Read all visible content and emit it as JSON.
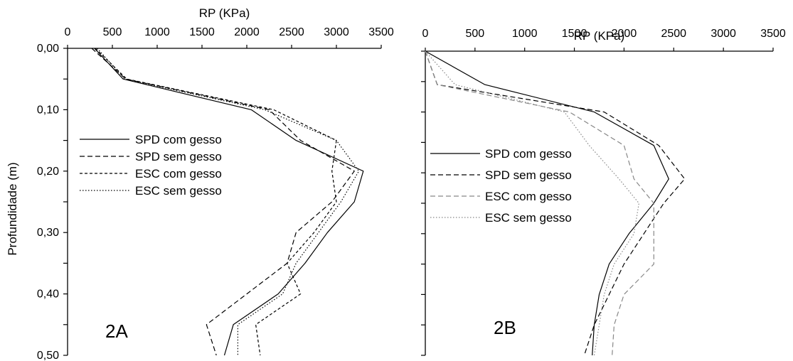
{
  "chart_data": [
    {
      "type": "line",
      "panel_label": "2A",
      "xlabel": "RP (KPa)",
      "ylabel": "Profundidade (m)",
      "xlim": [
        0,
        3500
      ],
      "ylim": [
        0,
        0.5
      ],
      "x_axis_position": "top",
      "y_axis_inverted": true,
      "x_ticks": [
        "0",
        "500",
        "1000",
        "1500",
        "2000",
        "2500",
        "3000",
        "3500"
      ],
      "y_ticks": [
        "0,00",
        "0,10",
        "0,20",
        "0,30",
        "0,40",
        "0,50"
      ],
      "grid": false,
      "legend_position": "center-left",
      "series": [
        {
          "name": "SPD com gesso",
          "style": "solid",
          "color": "#000000",
          "depth": [
            0,
            0.05,
            0.1,
            0.15,
            0.2,
            0.25,
            0.3,
            0.35,
            0.4,
            0.45,
            0.5
          ],
          "values": [
            300,
            620,
            2050,
            2550,
            3300,
            3200,
            2900,
            2650,
            2350,
            1850,
            1750
          ]
        },
        {
          "name": "SPD sem gesso",
          "style": "dashed",
          "color": "#000000",
          "depth": [
            0,
            0.05,
            0.1,
            0.15,
            0.2,
            0.25,
            0.3,
            0.35,
            0.4,
            0.45,
            0.5
          ],
          "values": [
            270,
            650,
            2250,
            2600,
            3200,
            2950,
            2550,
            2450,
            2000,
            1550,
            1660
          ]
        },
        {
          "name": "ESC com gesso",
          "style": "short-dashed",
          "color": "#000000",
          "depth": [
            0,
            0.05,
            0.1,
            0.15,
            0.2,
            0.25,
            0.3,
            0.35,
            0.4,
            0.45,
            0.5
          ],
          "values": [
            310,
            660,
            2300,
            3000,
            2950,
            3000,
            2750,
            2450,
            2600,
            2100,
            2150
          ]
        },
        {
          "name": "ESC sem gesso",
          "style": "dotted",
          "color": "#000000",
          "depth": [
            0,
            0.05,
            0.1,
            0.15,
            0.2,
            0.25,
            0.3,
            0.35,
            0.4,
            0.45,
            0.5
          ],
          "values": [
            330,
            640,
            2200,
            3000,
            3250,
            3050,
            2800,
            2550,
            2400,
            1900,
            1900
          ]
        }
      ]
    },
    {
      "type": "line",
      "panel_label": "2B",
      "xlabel": "RP (KPa)",
      "ylabel": "",
      "xlim": [
        0,
        3500
      ],
      "ylim": [
        0,
        0.5
      ],
      "x_axis_position": "top",
      "y_axis_inverted": true,
      "x_ticks": [
        "0",
        "500",
        "1000",
        "1500",
        "2000",
        "2500",
        "3000",
        "3500"
      ],
      "y_ticks": [],
      "grid": false,
      "legend_position": "center-left",
      "series": [
        {
          "name": "SPD com gesso",
          "style": "solid",
          "color": "#000000",
          "depth": [
            0,
            0.055,
            0.1,
            0.155,
            0.21,
            0.25,
            0.3,
            0.35,
            0.4,
            0.45,
            0.5
          ],
          "values": [
            0,
            600,
            1700,
            2300,
            2450,
            2300,
            2050,
            1850,
            1750,
            1700,
            1680
          ]
        },
        {
          "name": "SPD sem gesso",
          "style": "dashed",
          "color": "#000000",
          "depth": [
            0,
            0.055,
            0.1,
            0.155,
            0.21,
            0.25,
            0.3,
            0.35,
            0.4,
            0.45,
            0.5
          ],
          "values": [
            0,
            120,
            1800,
            2350,
            2610,
            2400,
            2200,
            2000,
            1850,
            1700,
            1600
          ]
        },
        {
          "name": "ESC com gesso",
          "style": "dashed",
          "color": "#888888",
          "depth": [
            0,
            0.055,
            0.1,
            0.155,
            0.21,
            0.25,
            0.3,
            0.35,
            0.4,
            0.45,
            0.5
          ],
          "values": [
            0,
            120,
            1450,
            2000,
            2100,
            2300,
            2300,
            2300,
            2000,
            1900,
            1880
          ]
        },
        {
          "name": "ESC sem gesso",
          "style": "dotted",
          "color": "#888888",
          "depth": [
            0,
            0.055,
            0.1,
            0.155,
            0.21,
            0.25,
            0.3,
            0.35,
            0.4,
            0.45,
            0.5
          ],
          "values": [
            0,
            300,
            1400,
            1650,
            1950,
            2150,
            2100,
            1900,
            1800,
            1750,
            1700
          ]
        }
      ]
    }
  ]
}
